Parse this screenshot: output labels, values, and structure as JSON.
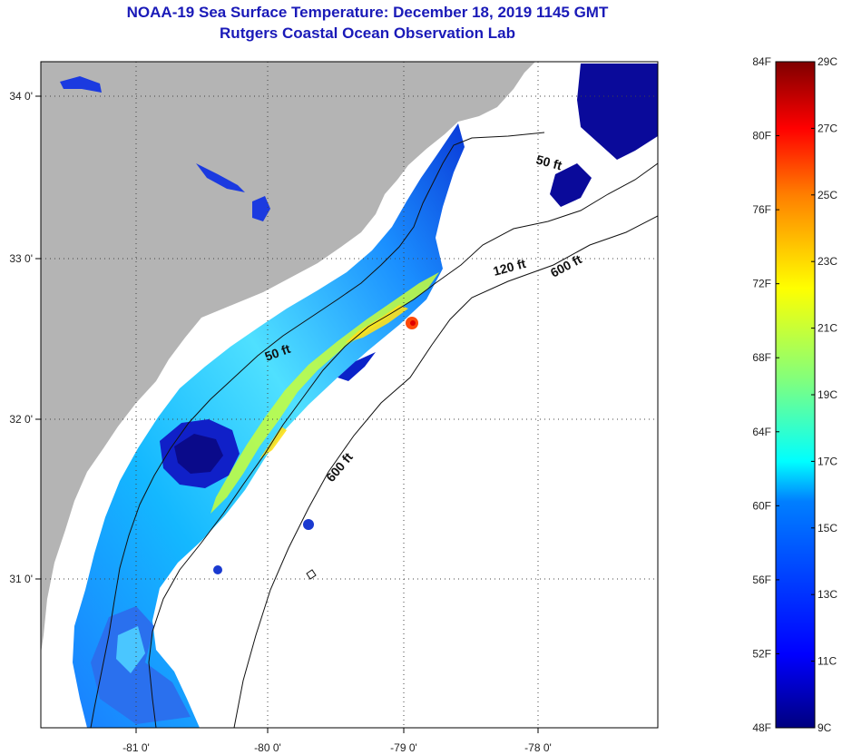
{
  "title": {
    "line1": "NOAA-19 Sea Surface Temperature:  December 18, 2019 1145 GMT",
    "line2": "Rutgers Coastal Ocean Observation Lab"
  },
  "map": {
    "lon_ticks": [
      "-81 0'",
      "-80 0'",
      "-79 0'",
      "-78 0'"
    ],
    "lat_ticks": [
      "34 0'",
      "33 0'",
      "32 0'",
      "31 0'"
    ],
    "contour_labels": [
      "50 ft",
      "120 ft",
      "600 ft",
      "50 ft",
      "600 ft"
    ],
    "colors": {
      "land": "#b4b4b4",
      "ocean_no_data": "#ffffff",
      "graticule": "#444444"
    }
  },
  "colorbar": {
    "fahrenheit_labels": [
      "84F",
      "80F",
      "76F",
      "72F",
      "68F",
      "64F",
      "60F",
      "56F",
      "52F",
      "48F"
    ],
    "celsius_labels": [
      "29C",
      "27C",
      "25C",
      "23C",
      "21C",
      "19C",
      "17C",
      "15C",
      "13C",
      "11C",
      "9C"
    ],
    "colormap": [
      "#00007f",
      "#0000ff",
      "#007fff",
      "#00ffff",
      "#7fff7f",
      "#ffff00",
      "#ff7f00",
      "#ff0000",
      "#7f0000"
    ]
  }
}
